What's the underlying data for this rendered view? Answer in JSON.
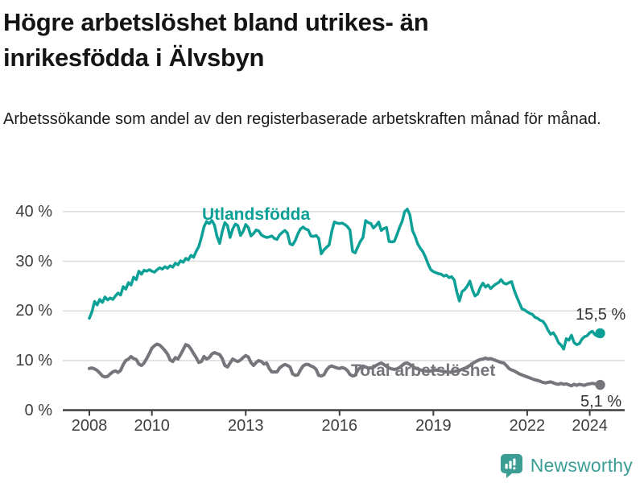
{
  "header": {
    "title": "Högre arbetslöshet bland utrikes- än inrikesfödda i Älvsbyn",
    "subtitle": "Arbetssökande som andel av den registerbaserade arbetskraften månad för månad."
  },
  "chart_data": {
    "type": "line",
    "title": "Högre arbetslöshet bland utrikes- än inrikesfödda i Älvsbyn",
    "subtitle": "Arbetssökande som andel av den registerbaserade arbetskraften månad för månad.",
    "unit": "%",
    "grid": "horizontal-only",
    "legend_position": "inline-labels",
    "ylim": [
      0,
      42
    ],
    "xlim": [
      2007.6,
      2025.1
    ],
    "y_ticks": [
      {
        "label": "40 %",
        "value": 40
      },
      {
        "label": "30 %",
        "value": 30
      },
      {
        "label": "20 %",
        "value": 20
      },
      {
        "label": "10 %",
        "value": 10
      },
      {
        "label": "0 %",
        "value": 0
      }
    ],
    "x_ticks": [
      {
        "label": "2008",
        "year": 2008
      },
      {
        "label": "2010",
        "year": 2010
      },
      {
        "label": "2013",
        "year": 2013
      },
      {
        "label": "2016",
        "year": 2016
      },
      {
        "label": "2019",
        "year": 2019
      },
      {
        "label": "2022",
        "year": 2022
      },
      {
        "label": "2024",
        "year": 2024
      }
    ],
    "grid_color": "#dbdbdb",
    "axis_color": "#3e3e3e",
    "series": [
      {
        "name": "Utlandsfödda",
        "color": "#0da096",
        "line_width": 3.5,
        "end_label": "15,5 %",
        "end_value": 15.5,
        "start_year": 2008,
        "monthly_values": [
          18.5,
          19.8,
          21.9,
          21.2,
          22.3,
          21.7,
          22.8,
          22.2,
          22.6,
          22.3,
          23.0,
          23.6,
          23.2,
          24.9,
          24.4,
          25.7,
          25.2,
          26.8,
          26.3,
          28.0,
          27.4,
          28.2,
          28.0,
          28.3,
          28.0,
          27.8,
          28.3,
          28.7,
          28.4,
          28.9,
          28.6,
          29.1,
          28.8,
          29.6,
          29.3,
          30.1,
          29.8,
          30.6,
          30.3,
          31.2,
          30.8,
          32.0,
          33.0,
          34.8,
          37.0,
          38.0,
          37.6,
          38.2,
          37.3,
          35.0,
          33.6,
          36.0,
          37.8,
          37.2,
          34.8,
          36.5,
          37.5,
          37.2,
          35.2,
          36.0,
          37.4,
          36.8,
          35.1,
          35.6,
          36.3,
          36.1,
          35.3,
          35.0,
          34.8,
          34.9,
          35.1,
          34.6,
          34.4,
          35.3,
          35.8,
          36.2,
          35.7,
          33.5,
          33.3,
          34.2,
          35.5,
          36.5,
          36.9,
          36.5,
          36.3,
          35.1,
          35.0,
          35.2,
          34.6,
          31.5,
          32.3,
          32.8,
          33.3,
          36.0,
          37.9,
          37.7,
          37.6,
          37.7,
          37.4,
          37.0,
          36.3,
          32.0,
          31.7,
          32.9,
          34.0,
          34.8,
          38.2,
          37.8,
          37.6,
          36.7,
          37.2,
          37.9,
          36.2,
          36.6,
          36.8,
          34.0,
          33.9,
          34.0,
          35.3,
          36.8,
          38.0,
          40.0,
          40.5,
          39.3,
          36.2,
          35.0,
          33.5,
          32.6,
          31.9,
          30.8,
          29.4,
          28.3,
          27.9,
          27.7,
          27.5,
          27.4,
          27.0,
          27.2,
          26.7,
          26.9,
          26.2,
          23.8,
          22.0,
          23.9,
          24.3,
          25.0,
          26.0,
          24.2,
          23.0,
          23.4,
          24.7,
          25.6,
          24.8,
          25.2,
          24.5,
          25.0,
          25.4,
          25.7,
          26.3,
          25.6,
          25.4,
          25.7,
          25.9,
          24.2,
          22.8,
          21.6,
          20.4,
          20.2,
          19.8,
          19.5,
          19.3,
          18.7,
          18.5,
          18.1,
          17.9,
          17.2,
          16.1,
          15.3,
          15.6,
          14.8,
          13.6,
          13.1,
          12.3,
          14.4,
          14.1,
          15.1,
          13.6,
          13.2,
          13.4,
          14.3,
          14.8,
          15.0,
          15.6,
          15.9,
          15.2,
          14.9,
          15.5
        ]
      },
      {
        "name": "Total arbetslöshet",
        "color": "#75757b",
        "line_width": 4,
        "end_label": "5,1 %",
        "end_value": 5.1,
        "start_year": 2008,
        "monthly_values": [
          8.4,
          8.5,
          8.3,
          8.0,
          7.5,
          6.9,
          6.7,
          6.8,
          7.3,
          7.7,
          7.9,
          7.6,
          8.0,
          9.2,
          10.0,
          10.3,
          10.8,
          10.4,
          10.2,
          9.3,
          9.0,
          9.5,
          10.4,
          11.4,
          12.5,
          13.0,
          13.3,
          13.1,
          12.6,
          12.0,
          11.3,
          10.1,
          9.8,
          10.6,
          10.3,
          11.2,
          12.2,
          13.2,
          13.0,
          12.3,
          11.4,
          10.6,
          9.6,
          9.8,
          10.8,
          10.3,
          10.6,
          11.3,
          11.6,
          11.4,
          11.2,
          10.4,
          9.0,
          8.7,
          9.5,
          10.3,
          10.0,
          9.8,
          10.1,
          10.6,
          11.0,
          10.7,
          9.6,
          9.0,
          9.6,
          10.0,
          9.8,
          9.3,
          9.5,
          8.4,
          7.7,
          7.7,
          7.7,
          8.5,
          8.9,
          9.2,
          9.0,
          8.7,
          7.3,
          7.0,
          7.1,
          8.1,
          8.9,
          9.2,
          9.2,
          8.9,
          8.7,
          8.2,
          7.0,
          6.9,
          7.1,
          8.1,
          8.7,
          8.9,
          8.7,
          8.5,
          8.4,
          8.6,
          8.4,
          8.0,
          7.2,
          6.9,
          7.0,
          8.1,
          8.6,
          8.9,
          8.7,
          8.5,
          8.5,
          8.7,
          9.0,
          9.3,
          9.5,
          9.2,
          8.8,
          8.5,
          8.3,
          8.2,
          8.3,
          8.6,
          9.0,
          9.4,
          9.5,
          9.2,
          8.8,
          8.5,
          8.3,
          8.1,
          8.0,
          7.9,
          7.8,
          7.9,
          8.0,
          8.1,
          8.0,
          7.9,
          7.8,
          7.7,
          7.6,
          7.7,
          7.8,
          7.9,
          8.0,
          8.2,
          8.4,
          8.7,
          9.0,
          9.4,
          9.7,
          10.0,
          10.2,
          10.3,
          10.5,
          10.3,
          10.4,
          10.2,
          10.0,
          9.8,
          9.6,
          9.5,
          9.0,
          8.4,
          8.1,
          7.9,
          7.6,
          7.3,
          7.1,
          6.9,
          6.7,
          6.5,
          6.3,
          6.1,
          6.0,
          5.8,
          5.6,
          5.5,
          5.6,
          5.7,
          5.5,
          5.3,
          5.2,
          5.4,
          5.2,
          5.3,
          5.1,
          4.9,
          5.2,
          5.0,
          5.2,
          5.1,
          5.0,
          5.2,
          5.3,
          5.4,
          5.3,
          5.2,
          5.1
        ]
      }
    ]
  },
  "footer": {
    "brand": "Newsworthy",
    "brand_color": "#3c9d95"
  }
}
